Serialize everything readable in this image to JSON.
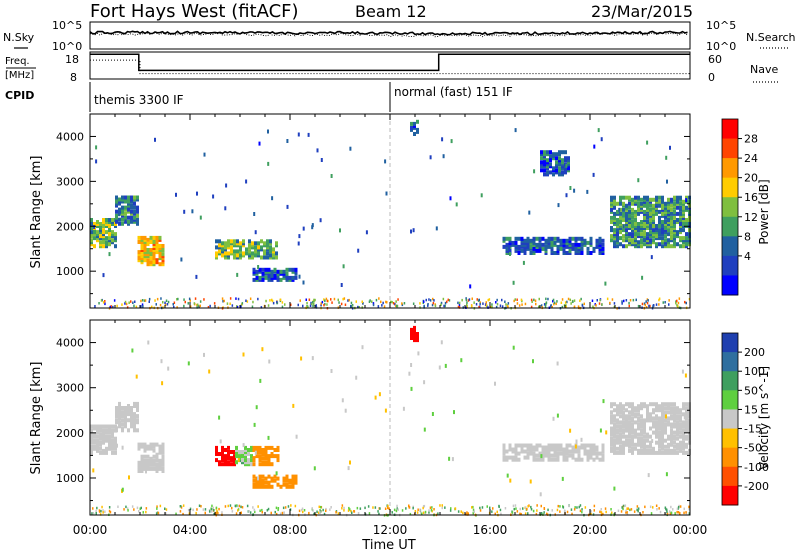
{
  "header": {
    "station": "Fort Hays West (fitACF)",
    "beam": "Beam 12",
    "date": "23/Mar/2015"
  },
  "noise_panel": {
    "left_label": "N.Sky",
    "left_ticks": [
      "10^5",
      "10^0"
    ],
    "right_ticks": [
      "10^5",
      "10^0"
    ],
    "right_label": "N.Search"
  },
  "freq_panel": {
    "left_label_top": "Freq.",
    "left_label_bottom": "[MHz]",
    "left_ticks": [
      "18",
      "8"
    ],
    "right_ticks": [
      "60",
      "0"
    ],
    "right_label": "Nave"
  },
  "cpid": {
    "label": "CPID",
    "modes": [
      "themis 3300 IF",
      "normal (fast) 151 IF"
    ]
  },
  "time_axis": {
    "label": "Time UT",
    "ticks": [
      "00:00",
      "04:00",
      "08:00",
      "12:00",
      "16:00",
      "20:00",
      "00:00"
    ]
  },
  "power_colorbar": {
    "label": "Power [dB]",
    "ticks": [
      "28",
      "24",
      "20",
      "16",
      "12",
      "8",
      "4"
    ],
    "colors": [
      "#ff0000",
      "#ff4400",
      "#ff9900",
      "#ffcc00",
      "#7fbf3f",
      "#3f9f5f",
      "#2060a0",
      "#1f3fbf",
      "#0000ff"
    ]
  },
  "velocity_colorbar": {
    "label": "Velocity [m s^-1]",
    "ticks": [
      "200",
      "100",
      "50",
      "15",
      "-15",
      "-50",
      "-100",
      "-200"
    ],
    "colors": [
      "#1f3faf",
      "#2f6f9f",
      "#3f9f5f",
      "#5fcf3f",
      "#c8c8c8",
      "#ffc000",
      "#ff9000",
      "#ff5000",
      "#ff0000"
    ]
  },
  "chart_data": [
    {
      "type": "line",
      "panel": "noise",
      "ylabel": "N.Sky",
      "x_range_hours": [
        0,
        24
      ],
      "series": [
        {
          "name": "N.Sky",
          "style": "solid",
          "x": [
            0,
            2,
            4,
            6,
            8,
            10,
            12,
            14,
            16,
            18,
            20,
            22,
            24
          ],
          "y": [
            1000,
            1200,
            1100,
            1000,
            900,
            1000,
            800,
            700,
            700,
            800,
            900,
            1000,
            1200
          ]
        },
        {
          "name": "N.Search",
          "style": "dotted",
          "x": [
            0,
            2,
            4,
            6,
            8,
            10,
            12,
            14,
            16,
            18,
            20,
            22,
            24
          ],
          "y": [
            500,
            600,
            500,
            500,
            400,
            500,
            300,
            300,
            300,
            400,
            500,
            500,
            600
          ]
        }
      ]
    },
    {
      "type": "line",
      "panel": "frequency",
      "ylabel": "Freq. [MHz]",
      "y_range": [
        8,
        18
      ],
      "y2_range": [
        0,
        60
      ],
      "series": [
        {
          "name": "Freq.",
          "style": "solid",
          "x": [
            0,
            1.95,
            1.95,
            13.95,
            13.95,
            24
          ],
          "y": [
            17.2,
            17.2,
            11.2,
            11.2,
            17.2,
            17.2
          ]
        },
        {
          "name": "Nave",
          "style": "dotted",
          "x": [
            0,
            2,
            2,
            24
          ],
          "y": [
            15,
            15,
            10,
            10
          ]
        }
      ]
    },
    {
      "type": "heatmap",
      "panel": "power",
      "xlabel": "Time UT",
      "ylabel": "Slant Range [km]",
      "x_range_hours": [
        0,
        24
      ],
      "y_range_km": [
        180,
        4500
      ],
      "yticks": [
        1000,
        2000,
        3000,
        4000
      ],
      "colorbar": "Power [dB]",
      "scatter_echoes": [
        {
          "t_start": 0.0,
          "t_end": 1.0,
          "r_start": 1600,
          "r_end": 2200,
          "value": 12
        },
        {
          "t_start": 1.0,
          "t_end": 1.9,
          "r_start": 2100,
          "r_end": 2700,
          "value": 8
        },
        {
          "t_start": 1.9,
          "t_end": 2.9,
          "r_start": 1200,
          "r_end": 1800,
          "value": 18
        },
        {
          "t_start": 5.0,
          "t_end": 7.5,
          "r_start": 1350,
          "r_end": 1750,
          "value": 12
        },
        {
          "t_start": 6.5,
          "t_end": 8.2,
          "r_start": 850,
          "r_end": 1100,
          "value": 6
        },
        {
          "t_start": 12.8,
          "t_end": 13.1,
          "r_start": 4100,
          "r_end": 4400,
          "value": 6
        },
        {
          "t_start": 16.5,
          "t_end": 20.5,
          "r_start": 1450,
          "r_end": 1800,
          "value": 6
        },
        {
          "t_start": 18.0,
          "t_end": 19.2,
          "r_start": 3200,
          "r_end": 3700,
          "value": 6
        },
        {
          "t_start": 20.8,
          "t_end": 24.0,
          "r_start": 1600,
          "r_end": 2700,
          "value": 10
        }
      ]
    },
    {
      "type": "heatmap",
      "panel": "velocity",
      "xlabel": "Time UT",
      "ylabel": "Slant Range [km]",
      "x_range_hours": [
        0,
        24
      ],
      "y_range_km": [
        180,
        4500
      ],
      "yticks": [
        1000,
        2000,
        3000,
        4000
      ],
      "colorbar": "Velocity [m s^-1]",
      "scatter_echoes": [
        {
          "t_start": 0.0,
          "t_end": 1.0,
          "r_start": 1600,
          "r_end": 2200,
          "value": 0
        },
        {
          "t_start": 1.0,
          "t_end": 1.9,
          "r_start": 2100,
          "r_end": 2700,
          "value": 0
        },
        {
          "t_start": 1.9,
          "t_end": 2.9,
          "r_start": 1200,
          "r_end": 1800,
          "value": 0
        },
        {
          "t_start": 5.0,
          "t_end": 5.8,
          "r_start": 1350,
          "r_end": 1750,
          "value": -200
        },
        {
          "t_start": 5.8,
          "t_end": 6.5,
          "r_start": 1350,
          "r_end": 1750,
          "value": 20
        },
        {
          "t_start": 6.5,
          "t_end": 7.5,
          "r_start": 1350,
          "r_end": 1750,
          "value": -60
        },
        {
          "t_start": 6.5,
          "t_end": 8.2,
          "r_start": 850,
          "r_end": 1100,
          "value": -60
        },
        {
          "t_start": 12.8,
          "t_end": 13.1,
          "r_start": 4100,
          "r_end": 4400,
          "value": -200
        },
        {
          "t_start": 16.5,
          "t_end": 20.5,
          "r_start": 1450,
          "r_end": 1800,
          "value": 0
        },
        {
          "t_start": 20.8,
          "t_end": 24.0,
          "r_start": 1600,
          "r_end": 2700,
          "value": 0
        }
      ]
    }
  ]
}
